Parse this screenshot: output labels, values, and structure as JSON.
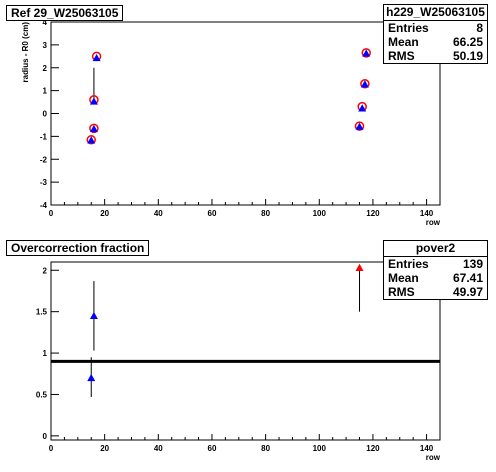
{
  "chart_data": [
    {
      "type": "scatter",
      "title": "Ref 29_W25063105",
      "xlabel": "row",
      "ylabel": "radius - R0 (cm)",
      "xlim": [
        0,
        145
      ],
      "ylim": [
        -4,
        4
      ],
      "xticks": [
        "0",
        "20",
        "40",
        "60",
        "80",
        "100",
        "120",
        "140"
      ],
      "yticks": [
        "-4",
        "-3",
        "-2",
        "-1",
        "0",
        "1",
        "2",
        "3",
        "4"
      ],
      "stats": {
        "name": "h229_W25063105",
        "rows": [
          {
            "label": "Entries",
            "value": "8"
          },
          {
            "label": "Mean",
            "value": "66.25"
          },
          {
            "label": "RMS",
            "value": "50.19"
          }
        ]
      },
      "series": [
        {
          "marker": "open-circle",
          "color": "#ff0000",
          "x": [
            15,
            16,
            16,
            17,
            115,
            116,
            117,
            117.5
          ],
          "y": [
            -1.15,
            -0.65,
            0.6,
            2.5,
            -0.55,
            0.3,
            1.3,
            2.65
          ]
        },
        {
          "marker": "triangle",
          "color": "#0000ff",
          "x": [
            15,
            16,
            16,
            17,
            115,
            116,
            117,
            117.5
          ],
          "y": [
            -1.15,
            -0.65,
            0.55,
            2.45,
            -0.55,
            0.25,
            1.3,
            2.65
          ]
        }
      ],
      "error_bars": [
        {
          "x": 16,
          "y_low": 0.55,
          "y_high": 2.0
        }
      ],
      "grid": false
    },
    {
      "type": "scatter",
      "title": "Overcorrection fraction",
      "xlabel": "row",
      "ylabel": "",
      "xlim": [
        0,
        145
      ],
      "ylim": [
        -0.05,
        2.1
      ],
      "xticks": [
        "0",
        "20",
        "40",
        "60",
        "80",
        "100",
        "120",
        "140"
      ],
      "yticks": [
        "0",
        "0.5",
        "1",
        "1.5",
        "2"
      ],
      "stats": {
        "name": "pover2",
        "rows": [
          {
            "label": "Entries",
            "value": "139"
          },
          {
            "label": "Mean",
            "value": "67.41"
          },
          {
            "label": "RMS",
            "value": "49.97"
          }
        ]
      },
      "points": [
        {
          "x": 15,
          "y": 0.7,
          "y_low": 0.47,
          "y_high": 0.95,
          "color": "#0000ff"
        },
        {
          "x": 16,
          "y": 1.45,
          "y_low": 1.03,
          "y_high": 1.87,
          "color": "#0000ff"
        },
        {
          "x": 115,
          "y": 2.03,
          "y_low": 1.5,
          "y_high": 2.03,
          "color": "#ff0000"
        }
      ],
      "reference_line": {
        "y": 0.9,
        "color": "#000000"
      },
      "grid": false
    }
  ]
}
